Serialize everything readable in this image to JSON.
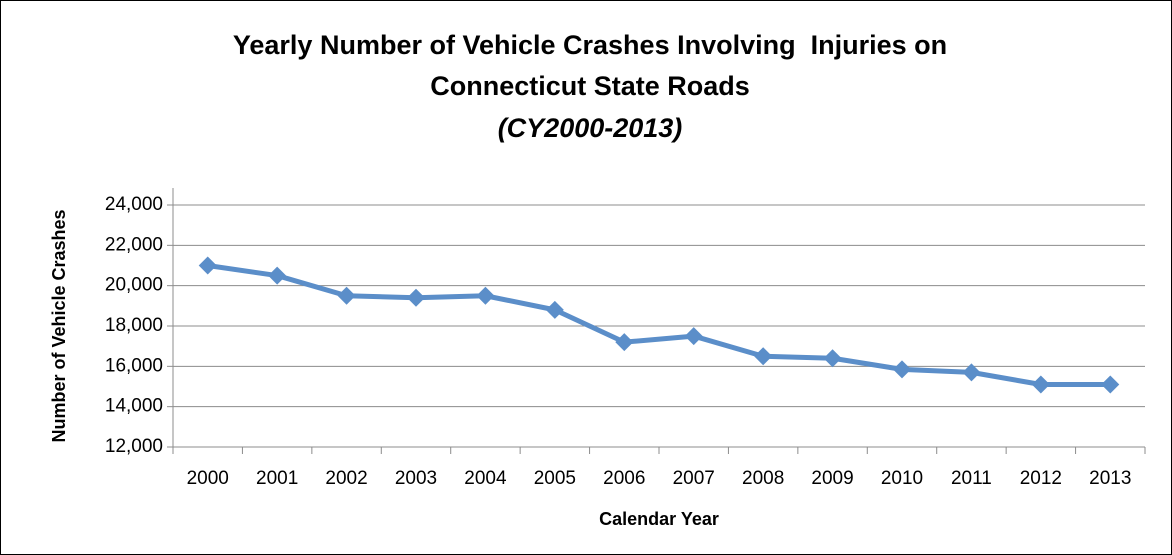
{
  "chart_data": {
    "type": "line",
    "title": [
      "Yearly Number of Vehicle Crashes Involving  Injuries on",
      "Connecticut State Roads"
    ],
    "subtitle": "(CY2000-2013)",
    "x_label": "Calendar Year",
    "y_label": "Number of Vehicle Crashes",
    "categories": [
      "2000",
      "2001",
      "2002",
      "2003",
      "2004",
      "2005",
      "2006",
      "2007",
      "2008",
      "2009",
      "2010",
      "2011",
      "2012",
      "2013"
    ],
    "values": [
      21000,
      20500,
      19500,
      19400,
      19500,
      18800,
      17200,
      17500,
      16500,
      16400,
      15850,
      15700,
      15100,
      15100
    ],
    "color": "#5b8ec9",
    "ylim": [
      12000,
      24000
    ],
    "yticks": [
      {
        "value": 12000,
        "label": "12,000"
      },
      {
        "value": 14000,
        "label": "14,000"
      },
      {
        "value": 16000,
        "label": "16,000"
      },
      {
        "value": 18000,
        "label": "18,000"
      },
      {
        "value": 20000,
        "label": "20,000"
      },
      {
        "value": 22000,
        "label": "22,000"
      },
      {
        "value": 24000,
        "label": "24,000"
      }
    ],
    "grid": true
  }
}
